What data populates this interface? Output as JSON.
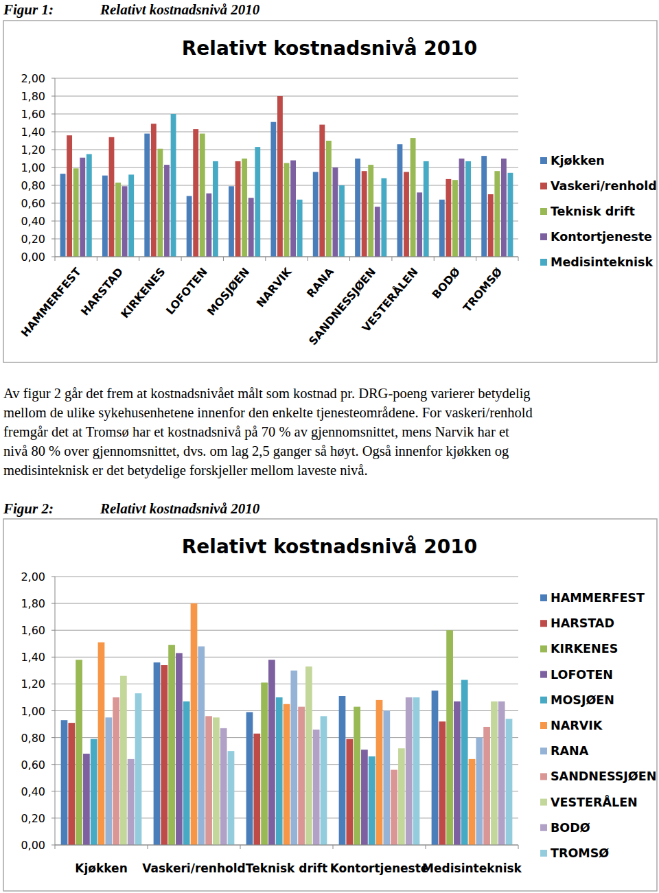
{
  "captions": [
    {
      "label": "Figur 1:",
      "title": "Relativt kostnadsnivå 2010"
    },
    {
      "label": "Figur 2:",
      "title": "Relativt kostnadsnivå 2010"
    }
  ],
  "paragraph": [
    "Av figur 2 går det frem at kostnadsnivået målt som kostnad pr. DRG-poeng varierer betydelig",
    "mellom de ulike sykehusenhetene innenfor den enkelte tjenesteområdene. For vaskeri/renhold",
    "fremgår det at Tromsø har et kostnadsnivå på 70 % av gjennomsnittet, mens Narvik har et",
    "nivå 80 % over gjennomsnittet, dvs. om lag 2,5 ganger så høyt. Også innenfor kjøkken og",
    "medisinteknisk er det betydelige forskjeller mellom laveste nivå."
  ],
  "chart_data": [
    {
      "type": "bar",
      "title": "Relativt kostnadsnivå 2010",
      "categories": [
        "HAMMERFEST",
        "HARSTAD",
        "KIRKENES",
        "LOFOTEN",
        "MOSJØEN",
        "NARVIK",
        "RANA",
        "SANDNESSJØEN",
        "VESTERÅLEN",
        "BODØ",
        "TROMSØ"
      ],
      "series": [
        {
          "name": "Kjøkken",
          "color": "#4a7ebb",
          "values": [
            0.93,
            0.91,
            1.38,
            0.68,
            0.79,
            1.51,
            0.95,
            1.1,
            1.26,
            0.64,
            1.13
          ]
        },
        {
          "name": "Vaskeri/renhold",
          "color": "#be4b48",
          "values": [
            1.36,
            1.34,
            1.49,
            1.43,
            1.07,
            1.8,
            1.48,
            0.96,
            0.95,
            0.87,
            0.7
          ]
        },
        {
          "name": "Teknisk drift",
          "color": "#98b954",
          "values": [
            0.99,
            0.83,
            1.21,
            1.38,
            1.1,
            1.05,
            1.3,
            1.03,
            1.33,
            0.86,
            0.96
          ]
        },
        {
          "name": "Kontortjeneste",
          "color": "#7d60a0",
          "values": [
            1.11,
            0.79,
            1.03,
            0.71,
            0.66,
            1.08,
            1.0,
            0.56,
            0.72,
            1.1,
            1.1
          ]
        },
        {
          "name": "Medisinteknisk",
          "color": "#46aac5",
          "values": [
            1.15,
            0.92,
            1.6,
            1.07,
            1.23,
            0.64,
            0.8,
            0.88,
            1.07,
            1.07,
            0.94
          ]
        }
      ],
      "ylim": [
        0,
        2
      ],
      "yticks": [
        {
          "value": 0,
          "label": "0,00"
        },
        {
          "value": 0.2,
          "label": "0,20"
        },
        {
          "value": 0.4,
          "label": "0,40"
        },
        {
          "value": 0.6,
          "label": "0,60"
        },
        {
          "value": 0.8,
          "label": "0,80"
        },
        {
          "value": 1,
          "label": "1,00"
        },
        {
          "value": 1.2,
          "label": "1,20"
        },
        {
          "value": 1.4,
          "label": "1,40"
        },
        {
          "value": 1.6,
          "label": "1,60"
        },
        {
          "value": 1.8,
          "label": "1,80"
        },
        {
          "value": 2,
          "label": "2,00"
        }
      ],
      "grid": true,
      "legend": "right"
    },
    {
      "type": "bar",
      "title": "Relativt kostnadsnivå 2010",
      "categories": [
        "Kjøkken",
        "Vaskeri/renhold",
        "Teknisk drift",
        "Kontortjeneste",
        "Medisinteknisk"
      ],
      "series": [
        {
          "name": "HAMMERFEST",
          "color": "#4a7ebb",
          "values": [
            0.93,
            1.36,
            0.99,
            1.11,
            1.15
          ]
        },
        {
          "name": "HARSTAD",
          "color": "#be4b48",
          "values": [
            0.91,
            1.34,
            0.83,
            0.79,
            0.92
          ]
        },
        {
          "name": "KIRKENES",
          "color": "#98b954",
          "values": [
            1.38,
            1.49,
            1.21,
            1.03,
            1.6
          ]
        },
        {
          "name": "LOFOTEN",
          "color": "#7d60a0",
          "values": [
            0.68,
            1.43,
            1.38,
            0.71,
            1.07
          ]
        },
        {
          "name": "MOSJØEN",
          "color": "#46aac5",
          "values": [
            0.79,
            1.07,
            1.1,
            0.66,
            1.23
          ]
        },
        {
          "name": "NARVIK",
          "color": "#f79646",
          "values": [
            1.51,
            1.8,
            1.05,
            1.08,
            0.64
          ]
        },
        {
          "name": "RANA",
          "color": "#95b3d7",
          "values": [
            0.95,
            1.48,
            1.3,
            1.0,
            0.8
          ]
        },
        {
          "name": "SANDNESSJØEN",
          "color": "#da9694",
          "values": [
            1.1,
            0.96,
            1.03,
            0.56,
            0.88
          ]
        },
        {
          "name": "VESTERÅLEN",
          "color": "#c4d79b",
          "values": [
            1.26,
            0.95,
            1.33,
            0.72,
            1.07
          ]
        },
        {
          "name": "BODØ",
          "color": "#b2a1c7",
          "values": [
            0.64,
            0.87,
            0.86,
            1.1,
            1.07
          ]
        },
        {
          "name": "TROMSØ",
          "color": "#93cddd",
          "values": [
            1.13,
            0.7,
            0.96,
            1.1,
            0.94
          ]
        }
      ],
      "ylim": [
        0,
        2
      ],
      "yticks": [
        {
          "value": 0,
          "label": "0,00"
        },
        {
          "value": 0.2,
          "label": "0,20"
        },
        {
          "value": 0.4,
          "label": "0,40"
        },
        {
          "value": 0.6,
          "label": "0,60"
        },
        {
          "value": 0.8,
          "label": "0,80"
        },
        {
          "value": 1,
          "label": "1,00"
        },
        {
          "value": 1.2,
          "label": "1,20"
        },
        {
          "value": 1.4,
          "label": "1,40"
        },
        {
          "value": 1.6,
          "label": "1,60"
        },
        {
          "value": 1.8,
          "label": "1,80"
        },
        {
          "value": 2,
          "label": "2,00"
        }
      ],
      "grid": true,
      "legend": "right"
    }
  ]
}
